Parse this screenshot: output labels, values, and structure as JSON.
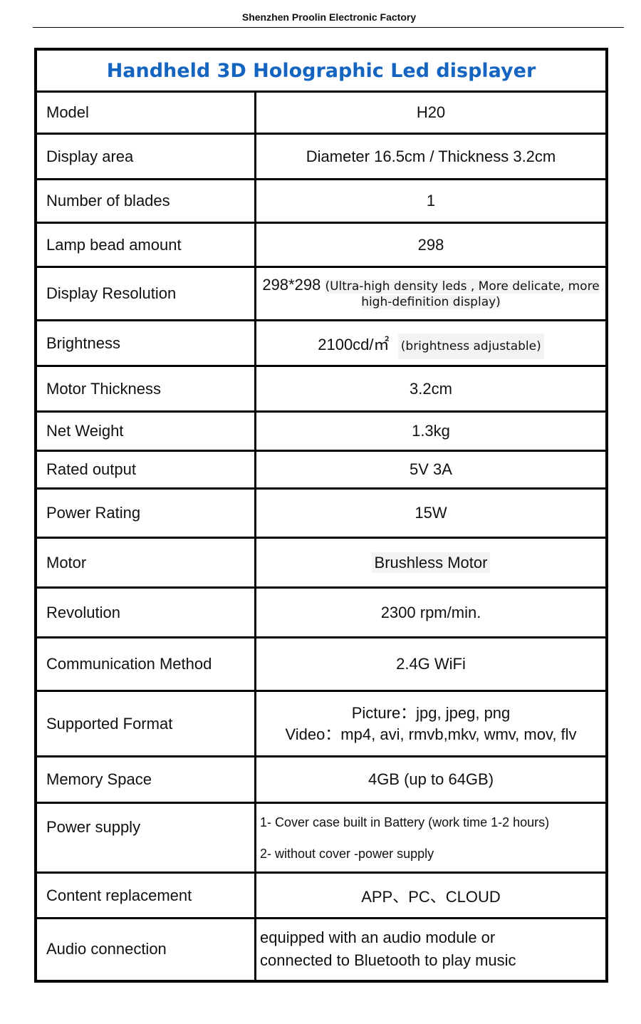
{
  "header": "Shenzhen Proolin Electronic Factory",
  "title": "Handheld 3D Holographic Led displayer",
  "title_color": "#1565c0",
  "rows": [
    {
      "label": "Model",
      "value": "H20"
    },
    {
      "label": "Display area",
      "value": "Diameter  16.5cm / Thickness 3.2cm"
    },
    {
      "label": "Number of blades",
      "value": "1"
    },
    {
      "label": "Lamp bead amount",
      "value": "298"
    },
    {
      "label": "Display Resolution",
      "value": "298*298",
      "note": "(Ultra-high density leds , More delicate, more high-definition display)"
    },
    {
      "label": "Brightness",
      "value": "2100cd/㎡",
      "note": "(brightness adjustable)"
    },
    {
      "label": "Motor Thickness",
      "value": "3.2cm"
    },
    {
      "label": "Net Weight",
      "value": "1.3kg"
    },
    {
      "label": "Rated output",
      "value": "5V  3A"
    },
    {
      "label": "Power Rating",
      "value": "15W"
    },
    {
      "label": "Motor",
      "value": "Brushless Motor"
    },
    {
      "label": "Revolution",
      "value": "2300 rpm/min."
    },
    {
      "label": "Communication Method",
      "value": "2.4G WiFi"
    },
    {
      "label": "Supported Format",
      "line1": "Picture：jpg, jpeg, png",
      "line2": "Video：mp4, avi, rmvb,mkv, wmv, mov, flv"
    },
    {
      "label": "Memory Space",
      "value": "4GB (up to 64GB)"
    },
    {
      "label": "Power supply",
      "line1": "1-   Cover case built in Battery (work time 1-2 hours)",
      "line2": "2-  without cover -power supply"
    },
    {
      "label": "Content replacement",
      "value": "APP、PC、CLOUD"
    },
    {
      "label": "Audio connection",
      "line1": "equipped with an audio module or",
      "line2": "connected to Bluetooth to play music"
    }
  ]
}
